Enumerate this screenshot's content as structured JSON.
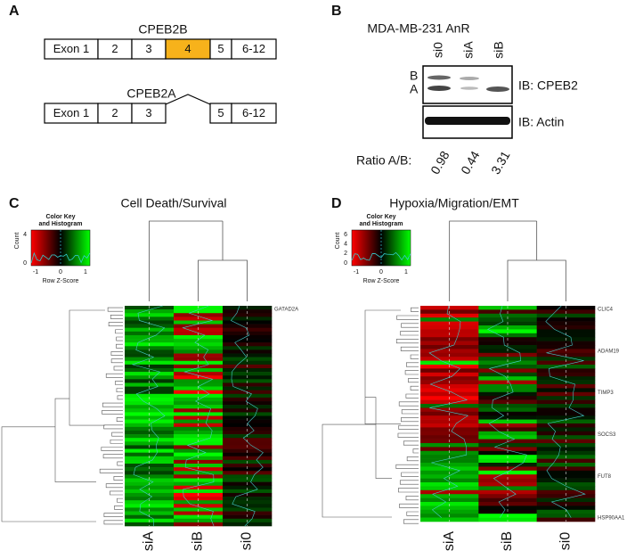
{
  "panel_a": {
    "label": "A",
    "isoforms": [
      {
        "name": "CPEB2B",
        "exons": [
          "Exon 1",
          "2",
          "3",
          "4",
          "5",
          "6-12"
        ]
      },
      {
        "name": "CPEB2A",
        "exons": [
          "Exon 1",
          "2",
          "3",
          "5",
          "6-12"
        ]
      }
    ]
  },
  "panel_b": {
    "label": "B",
    "title": "MDA-MB-231 AnR",
    "lanes": [
      "si0",
      "siA",
      "siB"
    ],
    "band_labels": [
      "B",
      "A"
    ],
    "blots": [
      "IB: CPEB2",
      "IB: Actin"
    ],
    "ratio_label": "Ratio A/B:",
    "ratios": [
      0.98,
      0.44,
      3.31
    ]
  },
  "panels": [
    {
      "label": "C",
      "title": "Cell Death/Survival",
      "key": {
        "title": [
          "Color Key",
          "and Histogram"
        ],
        "ylabel": "Count",
        "yticks": [
          "0",
          "4"
        ],
        "xticks": [
          "-1",
          "0",
          "1"
        ],
        "xlabel": "Row Z-Score"
      },
      "columns": [
        "siA",
        "siB",
        "si0"
      ],
      "rows": [
        "GATAD2A"
      ]
    },
    {
      "label": "D",
      "title": "Hypoxia/Migration/EMT",
      "key": {
        "title": [
          "Color Key",
          "and Histogram"
        ],
        "ylabel": "Count",
        "yticks": [
          "0",
          "2",
          "4",
          "6"
        ],
        "xticks": [
          "-1",
          "0",
          "1"
        ],
        "xlabel": "Row Z-Score"
      },
      "columns": [
        "siA",
        "siB",
        "si0"
      ],
      "rows": [
        "CLIC4",
        "ADAM19",
        "TIMP3",
        "SOCS3",
        "FUT8",
        "HSP90AA1"
      ]
    }
  ]
}
